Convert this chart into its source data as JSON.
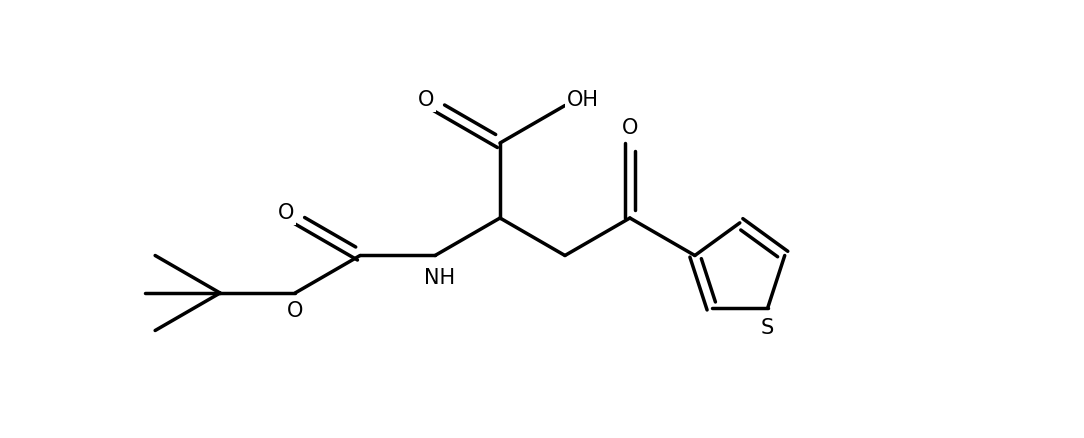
{
  "background_color": "#ffffff",
  "line_color": "#000000",
  "line_width": 2.5,
  "font_size": 15,
  "figsize": [
    10.84,
    4.38
  ],
  "dpi": 100,
  "xlim": [
    0,
    10.84
  ],
  "ylim": [
    0,
    4.38
  ]
}
